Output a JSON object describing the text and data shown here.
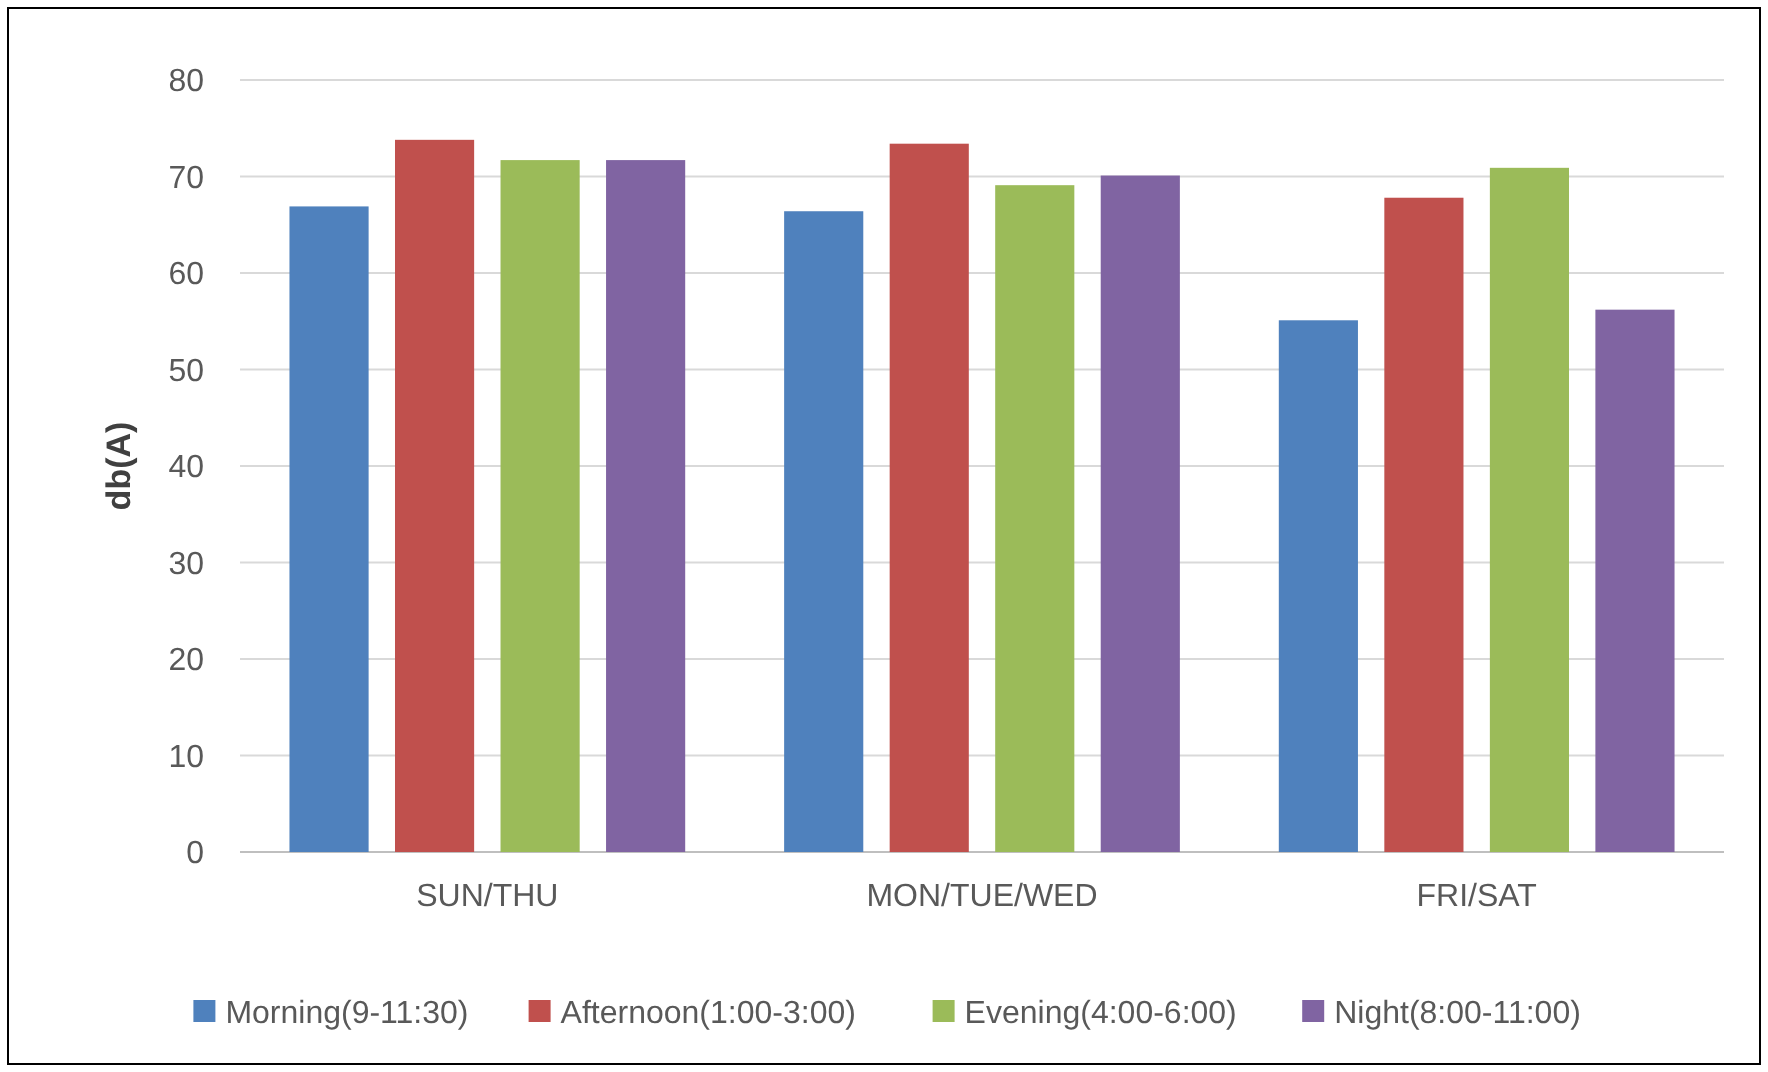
{
  "chart_data": {
    "type": "bar",
    "ylabel": "db(A)",
    "categories": [
      "SUN/THU",
      "MON/TUE/WED",
      "FRI/SAT"
    ],
    "series": [
      {
        "name": "Morning(9-11:30)",
        "color": "#4f81bd",
        "values": [
          66.9,
          66.4,
          55.1
        ]
      },
      {
        "name": "Afternoon(1:00-3:00)",
        "color": "#c0504d",
        "values": [
          73.8,
          73.4,
          67.8
        ]
      },
      {
        "name": "Evening(4:00-6:00)",
        "color": "#9bbb59",
        "values": [
          71.7,
          69.1,
          70.9
        ]
      },
      {
        "name": "Night(8:00-11:00)",
        "color": "#8064a2",
        "values": [
          71.7,
          70.1,
          56.2
        ]
      }
    ],
    "ylim": [
      0,
      80
    ],
    "yticks": [
      0,
      10,
      20,
      30,
      40,
      50,
      60,
      70,
      80
    ],
    "grid": "y",
    "legend": "bottom"
  }
}
